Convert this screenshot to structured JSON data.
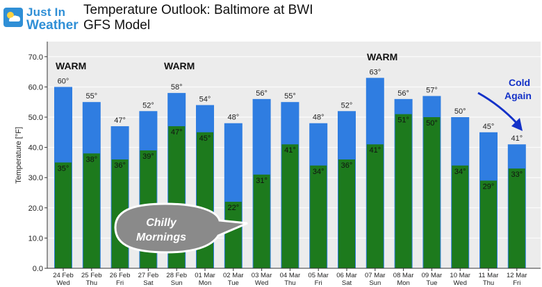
{
  "brand": {
    "line1": "Just In",
    "line2": "Weather"
  },
  "title": {
    "line1": "Temperature Outlook: Baltimore at BWI",
    "line2": "GFS Model"
  },
  "colors": {
    "high": "#2f7de1",
    "low": "#1d7a1d",
    "warm_text": "#111111",
    "cold_text": "#1432c8",
    "bubble": "#8a8a8a",
    "plot_bg": "#ececec"
  },
  "chart_data": {
    "type": "bar",
    "ylabel": "Temperature [°F]",
    "ylim": [
      0,
      75
    ],
    "yticks": [
      "0.0",
      "10.0",
      "20.0",
      "30.0",
      "40.0",
      "50.0",
      "60.0",
      "70.0"
    ],
    "grid": true,
    "dates": [
      "24 Feb",
      "25 Feb",
      "26 Feb",
      "27 Feb",
      "28 Feb",
      "01 Mar",
      "02 Mar",
      "03 Mar",
      "04 Mar",
      "05 Mar",
      "06 Mar",
      "07 Mar",
      "08 Mar",
      "09 Mar",
      "10 Mar",
      "11 Mar",
      "12 Mar"
    ],
    "days": [
      "Wed",
      "Thu",
      "Fri",
      "Sat",
      "Sun",
      "Mon",
      "Tue",
      "Wed",
      "Thu",
      "Fri",
      "Sat",
      "Sun",
      "Mon",
      "Tue",
      "Wed",
      "Thu",
      "Fri"
    ],
    "series": [
      {
        "values": [
          60,
          55,
          47,
          52,
          58,
          54,
          48,
          56,
          55,
          48,
          52,
          63,
          56,
          57,
          50,
          45,
          41
        ]
      },
      {
        "values": [
          35,
          38,
          36,
          39,
          47,
          45,
          22,
          31,
          41,
          34,
          36,
          41,
          51,
          50,
          34,
          29,
          33
        ]
      }
    ],
    "annotations": [
      {
        "text": "WARM",
        "at": 0
      },
      {
        "text": "WARM",
        "at": 4
      },
      {
        "text": "WARM",
        "at": 11
      },
      {
        "text": "Cold",
        "text2": "Again",
        "at": 16
      },
      {
        "text": "Chilly",
        "text2": "Mornings",
        "at": 6
      }
    ]
  }
}
